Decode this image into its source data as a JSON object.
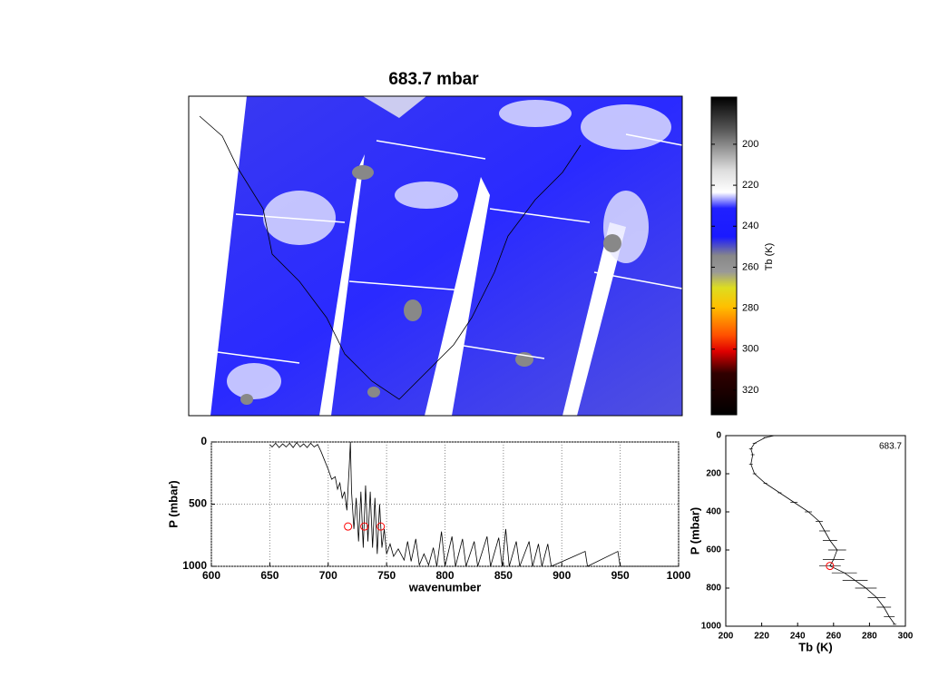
{
  "chart_data": [
    {
      "type": "image",
      "title": "683.7 mbar",
      "colorbar_label": "Tb (K)",
      "clim": [
        177,
        332
      ],
      "cticks": [
        200,
        220,
        240,
        260,
        280,
        300,
        320
      ]
    },
    {
      "type": "line",
      "xlabel": "wavenumber",
      "ylabel": "P (mbar)",
      "xlim": [
        600,
        1000
      ],
      "ylim": [
        0,
        1000
      ],
      "y_inverted": true,
      "grid": true,
      "xticks": [
        600,
        650,
        700,
        750,
        800,
        850,
        900,
        950,
        1000
      ],
      "yticks": [
        0,
        500,
        1000
      ],
      "color": "#000000",
      "x": [
        650,
        652,
        655,
        658,
        661,
        664,
        667,
        670,
        673,
        676,
        679,
        682,
        685,
        688,
        691,
        694,
        697,
        700,
        703,
        706,
        708,
        710,
        712,
        714,
        716,
        718,
        719,
        720,
        722,
        724,
        726,
        728,
        730,
        732,
        734,
        736,
        738,
        740,
        742,
        744,
        746,
        748,
        750,
        753,
        756,
        760,
        765,
        768,
        771,
        775,
        778,
        782,
        786,
        790,
        793,
        797,
        800,
        806,
        809,
        815,
        818,
        825,
        828,
        836,
        839,
        846,
        849,
        852,
        855,
        861,
        864,
        872,
        875,
        880,
        883,
        888,
        891,
        920,
        922,
        948,
        950,
        1000
      ],
      "values": [
        20,
        40,
        10,
        45,
        15,
        40,
        10,
        45,
        5,
        40,
        15,
        45,
        10,
        40,
        20,
        80,
        150,
        220,
        300,
        280,
        380,
        330,
        450,
        400,
        550,
        200,
        0,
        400,
        700,
        450,
        800,
        400,
        850,
        350,
        800,
        400,
        850,
        450,
        900,
        500,
        850,
        700,
        900,
        820,
        920,
        860,
        950,
        800,
        960,
        780,
        990,
        900,
        990,
        850,
        1000,
        720,
        1000,
        760,
        1000,
        780,
        1000,
        800,
        1000,
        760,
        1000,
        770,
        1000,
        700,
        1000,
        800,
        1000,
        800,
        1000,
        820,
        1000,
        820,
        1000,
        880,
        1000,
        880,
        1000,
        1000
      ],
      "markers": {
        "color": "#ff0000",
        "x": [
          717,
          731,
          745
        ],
        "values": [
          680,
          680,
          680
        ]
      }
    },
    {
      "type": "profile",
      "xlabel": "Tb (K)",
      "ylabel": "P (mbar)",
      "annotation": "683.7",
      "xlim": [
        200,
        300
      ],
      "ylim": [
        0,
        1000
      ],
      "y_inverted": true,
      "xticks": [
        200,
        220,
        240,
        260,
        280,
        300
      ],
      "yticks": [
        0,
        200,
        400,
        600,
        800,
        1000
      ],
      "color": "#000000",
      "x": [
        227,
        222,
        216,
        214,
        215,
        214,
        216,
        222,
        230,
        238,
        246,
        252,
        255,
        258,
        262,
        260,
        258,
        266,
        272,
        278,
        284,
        288,
        291,
        294
      ],
      "values": [
        0,
        10,
        40,
        70,
        100,
        150,
        200,
        250,
        300,
        350,
        400,
        450,
        500,
        550,
        600,
        650,
        683.7,
        720,
        760,
        800,
        850,
        900,
        950,
        990
      ],
      "errors": [
        1,
        1,
        1,
        1,
        1,
        1,
        1,
        1,
        1,
        2,
        2,
        2,
        3,
        4,
        5,
        6,
        6,
        7,
        7,
        6,
        5,
        4,
        3,
        1
      ],
      "markers": {
        "color": "#ff0000",
        "x": [
          258
        ],
        "values": [
          683.7
        ]
      }
    }
  ]
}
